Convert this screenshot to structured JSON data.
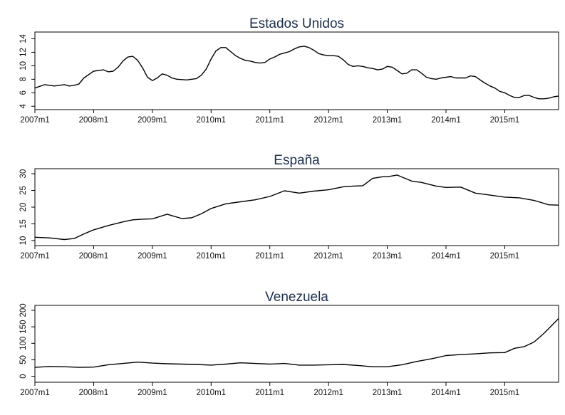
{
  "chart_data": [
    {
      "type": "line",
      "title": "Estados Unidos",
      "xlabel": "",
      "ylabel": "",
      "xlim": [
        2007.0,
        2015.917
      ],
      "ylim": [
        3.5,
        15.0
      ],
      "x_ticks": [
        {
          "value": 2007,
          "label": "2007m1"
        },
        {
          "value": 2008,
          "label": "2008m1"
        },
        {
          "value": 2009,
          "label": "2009m1"
        },
        {
          "value": 2010,
          "label": "2010m1"
        },
        {
          "value": 2011,
          "label": "2011m1"
        },
        {
          "value": 2012,
          "label": "2012m1"
        },
        {
          "value": 2013,
          "label": "2013m1"
        },
        {
          "value": 2014,
          "label": "2014m1"
        },
        {
          "value": 2015,
          "label": "2015m1"
        }
      ],
      "y_ticks": [
        {
          "value": 4,
          "label": "4"
        },
        {
          "value": 6,
          "label": "6"
        },
        {
          "value": 8,
          "label": "8"
        },
        {
          "value": 10,
          "label": "10"
        },
        {
          "value": 12,
          "label": "12"
        },
        {
          "value": 14,
          "label": "14"
        }
      ],
      "grid": false,
      "series": [
        {
          "x": [
            2007.0,
            2007.167,
            2007.333,
            2007.5,
            2007.583,
            2007.667,
            2007.75,
            2007.833,
            2008.0,
            2008.167,
            2008.25,
            2008.333,
            2008.417,
            2008.5,
            2008.583,
            2008.667,
            2008.75,
            2008.833,
            2008.917,
            2009.0,
            2009.083,
            2009.167,
            2009.25,
            2009.333,
            2009.417,
            2009.583,
            2009.75,
            2009.833,
            2009.917,
            2010.0,
            2010.083,
            2010.167,
            2010.25,
            2010.333,
            2010.417,
            2010.5,
            2010.583,
            2010.667,
            2010.75,
            2010.833,
            2010.917,
            2011.0,
            2011.083,
            2011.167,
            2011.25,
            2011.333,
            2011.417,
            2011.5,
            2011.583,
            2011.667,
            2011.75,
            2011.833,
            2011.917,
            2012.0,
            2012.083,
            2012.167,
            2012.25,
            2012.333,
            2012.417,
            2012.5,
            2012.583,
            2012.667,
            2012.75,
            2012.833,
            2012.917,
            2013.0,
            2013.083,
            2013.167,
            2013.25,
            2013.333,
            2013.417,
            2013.5,
            2013.583,
            2013.667,
            2013.75,
            2013.833,
            2013.917,
            2014.0,
            2014.083,
            2014.167,
            2014.25,
            2014.333,
            2014.417,
            2014.5,
            2014.583,
            2014.667,
            2014.75,
            2014.833,
            2014.917,
            2015.0,
            2015.083,
            2015.167,
            2015.25,
            2015.333,
            2015.417,
            2015.5,
            2015.583,
            2015.667,
            2015.75,
            2015.833,
            2015.917
          ],
          "values": [
            6.7,
            7.2,
            7.0,
            7.2,
            7.0,
            7.1,
            7.3,
            8.2,
            9.2,
            9.4,
            9.1,
            9.2,
            9.8,
            10.7,
            11.3,
            11.4,
            10.8,
            9.7,
            8.3,
            7.8,
            8.2,
            8.8,
            8.6,
            8.2,
            8.0,
            7.9,
            8.1,
            8.6,
            9.5,
            11.0,
            12.2,
            12.7,
            12.7,
            12.1,
            11.5,
            11.1,
            10.8,
            10.7,
            10.5,
            10.4,
            10.5,
            11.0,
            11.3,
            11.7,
            11.9,
            12.1,
            12.5,
            12.8,
            12.9,
            12.7,
            12.3,
            11.8,
            11.6,
            11.5,
            11.5,
            11.4,
            10.9,
            10.2,
            9.9,
            10.0,
            9.9,
            9.7,
            9.6,
            9.4,
            9.5,
            9.9,
            9.8,
            9.3,
            8.8,
            8.9,
            9.4,
            9.4,
            8.9,
            8.3,
            8.1,
            8.0,
            8.2,
            8.3,
            8.4,
            8.2,
            8.2,
            8.2,
            8.5,
            8.4,
            7.9,
            7.4,
            7.0,
            6.7,
            6.2,
            6.0,
            5.6,
            5.3,
            5.3,
            5.6,
            5.6,
            5.3,
            5.1,
            5.1,
            5.2,
            5.4,
            5.5
          ]
        }
      ]
    },
    {
      "type": "line",
      "title": "España",
      "xlabel": "",
      "ylabel": "",
      "xlim": [
        2007.0,
        2015.917
      ],
      "ylim": [
        8.5,
        31.5
      ],
      "x_ticks": [
        {
          "value": 2007,
          "label": "2007m1"
        },
        {
          "value": 2008,
          "label": "2008m1"
        },
        {
          "value": 2009,
          "label": "2009m1"
        },
        {
          "value": 2010,
          "label": "2010m1"
        },
        {
          "value": 2011,
          "label": "2011m1"
        },
        {
          "value": 2012,
          "label": "2012m1"
        },
        {
          "value": 2013,
          "label": "2013m1"
        },
        {
          "value": 2014,
          "label": "2014m1"
        },
        {
          "value": 2015,
          "label": "2015m1"
        }
      ],
      "y_ticks": [
        {
          "value": 10,
          "label": "10"
        },
        {
          "value": 15,
          "label": "15"
        },
        {
          "value": 20,
          "label": "20"
        },
        {
          "value": 25,
          "label": "25"
        },
        {
          "value": 30,
          "label": "30"
        }
      ],
      "grid": false,
      "series": [
        {
          "x": [
            2007.0,
            2007.25,
            2007.5,
            2007.667,
            2007.833,
            2008.0,
            2008.25,
            2008.5,
            2008.667,
            2008.833,
            2009.0,
            2009.25,
            2009.5,
            2009.667,
            2009.833,
            2010.0,
            2010.25,
            2010.5,
            2010.75,
            2011.0,
            2011.25,
            2011.5,
            2011.75,
            2012.0,
            2012.25,
            2012.417,
            2012.583,
            2012.75,
            2012.917,
            2013.0,
            2013.167,
            2013.417,
            2013.583,
            2013.833,
            2014.0,
            2014.25,
            2014.5,
            2014.75,
            2015.0,
            2015.25,
            2015.5,
            2015.75,
            2015.917
          ],
          "values": [
            11.0,
            10.8,
            10.3,
            10.6,
            12.0,
            13.2,
            14.5,
            15.6,
            16.2,
            16.4,
            16.5,
            17.9,
            16.6,
            16.8,
            18.0,
            19.6,
            21.0,
            21.6,
            22.2,
            23.2,
            24.9,
            24.2,
            24.8,
            25.2,
            26.1,
            26.3,
            26.4,
            28.6,
            29.1,
            29.1,
            29.6,
            27.8,
            27.4,
            26.3,
            25.9,
            26.0,
            24.2,
            23.6,
            23.0,
            22.8,
            22.0,
            20.7,
            20.6
          ]
        }
      ]
    },
    {
      "type": "line",
      "title": "Venezuela",
      "xlabel": "",
      "ylabel": "",
      "xlim": [
        2007.0,
        2015.917
      ],
      "ylim": [
        -18,
        215
      ],
      "x_ticks": [
        {
          "value": 2007,
          "label": "2007m1"
        },
        {
          "value": 2008,
          "label": "2008m1"
        },
        {
          "value": 2009,
          "label": "2009m1"
        },
        {
          "value": 2010,
          "label": "2010m1"
        },
        {
          "value": 2011,
          "label": "2011m1"
        },
        {
          "value": 2012,
          "label": "2012m1"
        },
        {
          "value": 2013,
          "label": "2013m1"
        },
        {
          "value": 2014,
          "label": "2014m1"
        },
        {
          "value": 2015,
          "label": "2015m1"
        }
      ],
      "y_ticks": [
        {
          "value": 0,
          "label": "0"
        },
        {
          "value": 50,
          "label": "50"
        },
        {
          "value": 100,
          "label": "100"
        },
        {
          "value": 150,
          "label": "150"
        },
        {
          "value": 200,
          "label": "200"
        }
      ],
      "grid": false,
      "series": [
        {
          "x": [
            2007.0,
            2007.25,
            2007.5,
            2007.75,
            2008.0,
            2008.25,
            2008.5,
            2008.75,
            2009.0,
            2009.25,
            2009.5,
            2009.75,
            2010.0,
            2010.25,
            2010.5,
            2010.75,
            2011.0,
            2011.25,
            2011.5,
            2011.75,
            2012.0,
            2012.25,
            2012.5,
            2012.75,
            2013.0,
            2013.25,
            2013.5,
            2013.75,
            2014.0,
            2014.25,
            2014.5,
            2014.75,
            2015.0,
            2015.167,
            2015.333,
            2015.5,
            2015.667,
            2015.833,
            2015.917
          ],
          "values": [
            27,
            30,
            29,
            27,
            28,
            35,
            39,
            43,
            40,
            38,
            37,
            36,
            34,
            37,
            41,
            39,
            37,
            39,
            34,
            34,
            35,
            36,
            33,
            29,
            29,
            35,
            45,
            53,
            63,
            66,
            68,
            71,
            72,
            85,
            90,
            104,
            130,
            160,
            175
          ]
        }
      ]
    }
  ]
}
